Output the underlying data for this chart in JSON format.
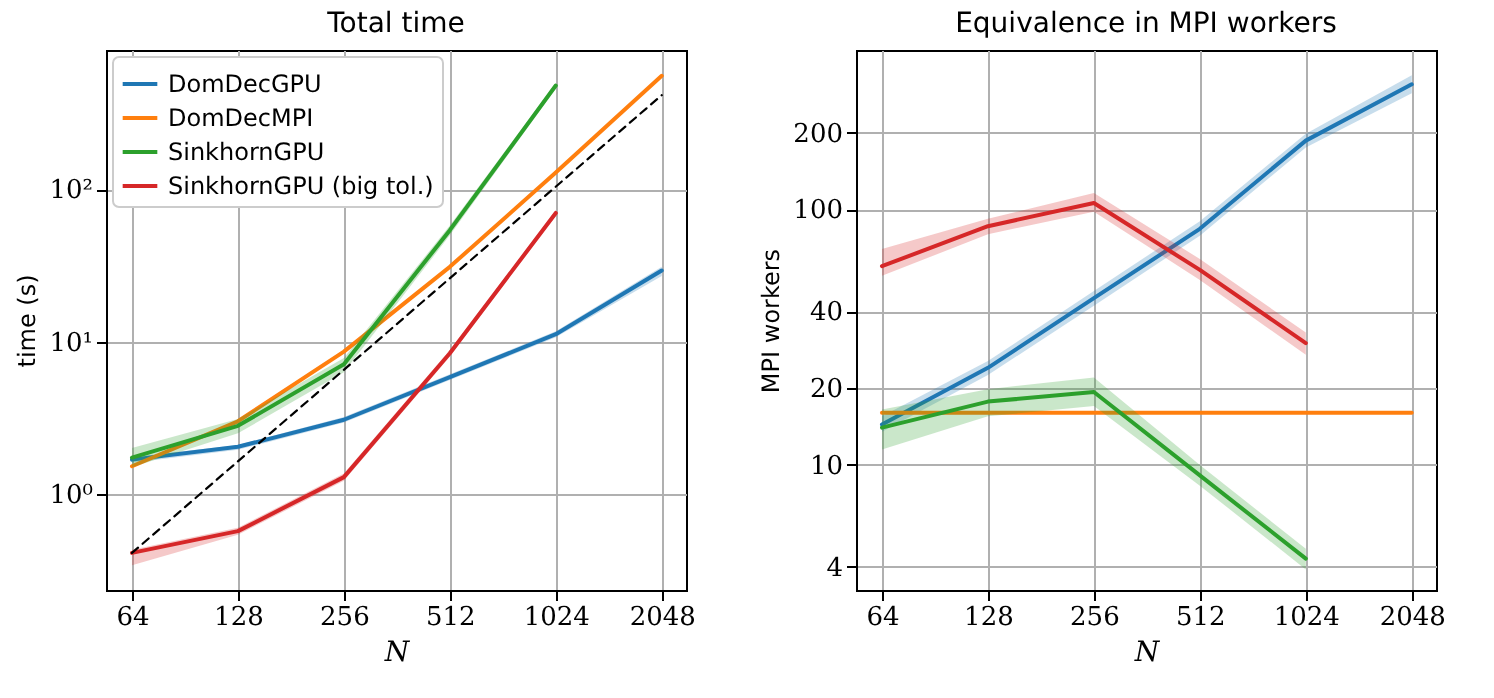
{
  "chart_data": [
    {
      "type": "line",
      "title": "Total time",
      "xlabel": "N",
      "ylabel": "time (s)",
      "x": [
        64,
        128,
        256,
        512,
        1024,
        2048
      ],
      "xlim": [
        54,
        2400
      ],
      "xticks": [
        64,
        128,
        256,
        512,
        1024,
        2048
      ],
      "ylim": [
        0.234,
        823
      ],
      "yticks": [
        {
          "value": 1,
          "label": "10⁰"
        },
        {
          "value": 10,
          "label": "10¹"
        },
        {
          "value": 100,
          "label": "10²"
        }
      ],
      "log": "xy",
      "grid": true,
      "legend": "top left",
      "series": [
        {
          "name": "DomDecGPU",
          "color": "#1f77b4",
          "values": [
            1.68,
            2.04,
            3.07,
            5.85,
            11.2,
            29.3
          ],
          "lower": [
            1.6,
            1.95,
            2.95,
            5.6,
            10.7,
            27
          ],
          "upper": [
            1.75,
            2.1,
            3.2,
            6.1,
            11.7,
            31
          ]
        },
        {
          "name": "DomDecMPI",
          "color": "#ff7f0e",
          "values": [
            1.52,
            3.0,
            8.6,
            31,
            129,
            557
          ]
        },
        {
          "name": "SinkhornGPU",
          "color": "#2ca02c",
          "x": [
            64,
            128,
            256,
            512,
            1024
          ],
          "values": [
            1.73,
            2.8,
            7.1,
            54,
            481
          ],
          "lower": [
            1.5,
            2.5,
            6.3,
            50,
            460
          ],
          "upper": [
            2.0,
            3.1,
            7.8,
            58,
            500
          ]
        },
        {
          "name": "SinkhornGPU (big tol.)",
          "color": "#d62728",
          "x": [
            64,
            128,
            256,
            512,
            1024
          ],
          "values": [
            0.41,
            0.57,
            1.29,
            8.4,
            70
          ],
          "lower": [
            0.34,
            0.54,
            1.22,
            8.0,
            67
          ],
          "upper": [
            0.43,
            0.6,
            1.36,
            8.8,
            73
          ]
        },
        {
          "color": "#000000",
          "x": [
            64,
            2048
          ],
          "values": [
            0.41,
            416
          ],
          "line_style": "dashed"
        }
      ]
    },
    {
      "type": "line",
      "title": "Equivalence in MPI workers",
      "xlabel": "N",
      "ylabel": "MPI workers",
      "x": [
        64,
        128,
        256,
        512,
        1024,
        2048
      ],
      "xlim": [
        54,
        2400
      ],
      "xticks": [
        64,
        128,
        256,
        512,
        1024,
        2048
      ],
      "ylim": [
        3.24,
        421
      ],
      "yticks": [
        4,
        10,
        20,
        40,
        100,
        200
      ],
      "log": "xy",
      "grid": true,
      "series": [
        {
          "color": "#1f77b4",
          "values": [
            14.4,
            24,
            45,
            84,
            186,
            309
          ],
          "lower": [
            13.5,
            22.5,
            42,
            79,
            175,
            285
          ],
          "upper": [
            15.5,
            25.5,
            48,
            90,
            198,
            335
          ]
        },
        {
          "color": "#ff7f0e",
          "values": [
            16,
            16,
            16,
            16,
            16,
            16
          ]
        },
        {
          "color": "#2ca02c",
          "x": [
            64,
            128,
            256,
            512,
            1024
          ],
          "values": [
            14,
            17.7,
            19.3,
            9.1,
            4.3
          ],
          "lower": [
            11.5,
            15.5,
            17,
            8.3,
            3.9
          ],
          "upper": [
            16.5,
            19.8,
            22,
            10,
            4.7
          ]
        },
        {
          "color": "#d62728",
          "x": [
            64,
            128,
            256,
            512,
            1024
          ],
          "values": [
            60,
            86,
            106,
            58,
            30
          ],
          "lower": [
            55,
            80,
            98,
            53,
            27
          ],
          "upper": [
            70,
            92,
            116,
            64,
            33
          ]
        }
      ]
    }
  ]
}
